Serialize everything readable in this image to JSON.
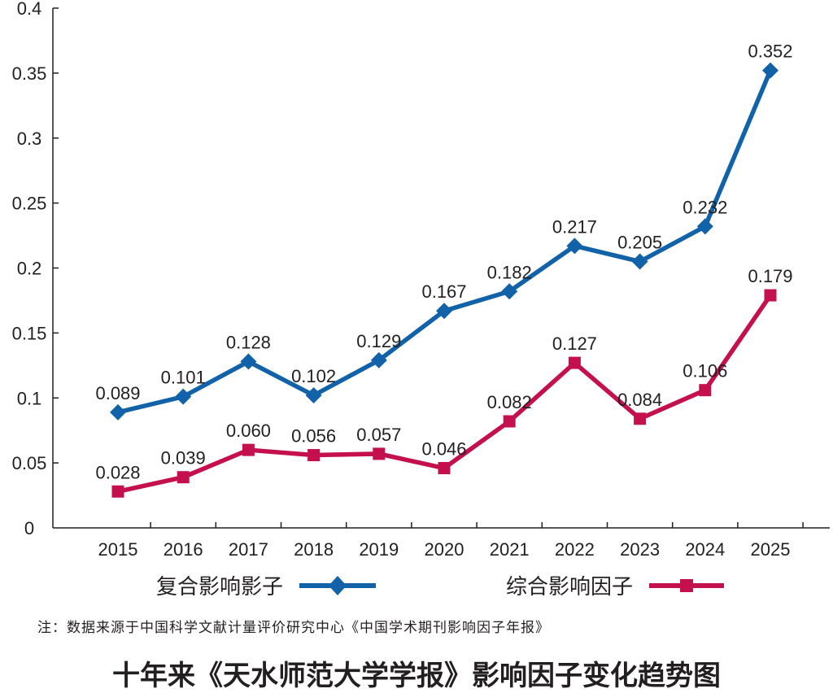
{
  "chart_data": {
    "type": "line",
    "title": "十年来《天水师范大学学报》影响因子变化趋势图",
    "note": "注：数据来源于中国科学文献计量评价研究中心《中国学术期刊影响因子年报》",
    "xlabel": "",
    "ylabel": "",
    "x": [
      "2015",
      "2016",
      "2017",
      "2018",
      "2019",
      "2020",
      "2021",
      "2022",
      "2023",
      "2024",
      "2025"
    ],
    "ylim": [
      0,
      0.4
    ],
    "yticks": [
      "0",
      "0.05",
      "0.1",
      "0.15",
      "0.2",
      "0.25",
      "0.3",
      "0.35",
      "0.4"
    ],
    "ytick_values": [
      0,
      0.05,
      0.1,
      0.15,
      0.2,
      0.25,
      0.3,
      0.35,
      0.4
    ],
    "grid": false,
    "legend_position": "bottom",
    "series": [
      {
        "name": "复合影响影子",
        "marker": "diamond",
        "color": "#1162a8",
        "values": [
          0.089,
          0.101,
          0.128,
          0.102,
          0.129,
          0.167,
          0.182,
          0.217,
          0.205,
          0.232,
          0.352
        ],
        "labels": [
          "0.089",
          "0.101",
          "0.128",
          "0.102",
          "0.129",
          "0.167",
          "0.182",
          "0.217",
          "0.205",
          "0.232",
          "0.352"
        ]
      },
      {
        "name": "综合影响因子",
        "marker": "square",
        "color": "#c4114d",
        "values": [
          0.028,
          0.039,
          0.06,
          0.056,
          0.057,
          0.046,
          0.082,
          0.127,
          0.084,
          0.106,
          0.179
        ],
        "labels": [
          "0.028",
          "0.039",
          "0.060",
          "0.056",
          "0.057",
          "0.046",
          "0.082",
          "0.127",
          "0.084",
          "0.106",
          "0.179"
        ]
      }
    ]
  }
}
